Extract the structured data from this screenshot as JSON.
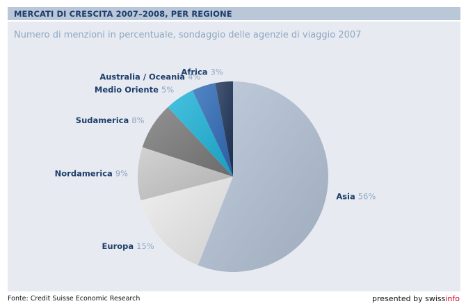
{
  "header": {
    "title": "MERCATI DI CRESCITA 2007–2008, PER REGIONE"
  },
  "subtitle": "Numero di menzioni in percentuale, sondaggio delle agenzie di viaggio 2007",
  "chart_data": {
    "type": "pie",
    "title": "MERCATI DI CRESCITA 2007–2008, PER REGIONE",
    "subtitle": "Numero di menzioni in percentuale, sondaggio delle agenzie di viaggio 2007",
    "start_angle": "12 o'clock, clockwise",
    "slices": [
      {
        "label": "Asia",
        "value": 56,
        "display": "56%",
        "color": "#b3c2d6"
      },
      {
        "label": "Europa",
        "value": 15,
        "display": "15%",
        "color": "#ececec"
      },
      {
        "label": "Nordamerica",
        "value": 9,
        "display": "9%",
        "color": "#c8c8c8"
      },
      {
        "label": "Sudamerica",
        "value": 8,
        "display": "8%",
        "color": "#7a7a7a"
      },
      {
        "label": "Medio Oriente",
        "value": 5,
        "display": "5%",
        "color": "#1fb3d9"
      },
      {
        "label": "Australia / Oceania",
        "value": 4,
        "display": "4%",
        "color": "#2f6bb8"
      },
      {
        "label": "Africa",
        "value": 3,
        "display": "3%",
        "color": "#1d3357"
      }
    ]
  },
  "footer": {
    "source": "Fonte: Credit Suisse Economic Research",
    "credit_prefix": "presented by ",
    "brand_swiss": "swiss",
    "brand_info": "info"
  }
}
